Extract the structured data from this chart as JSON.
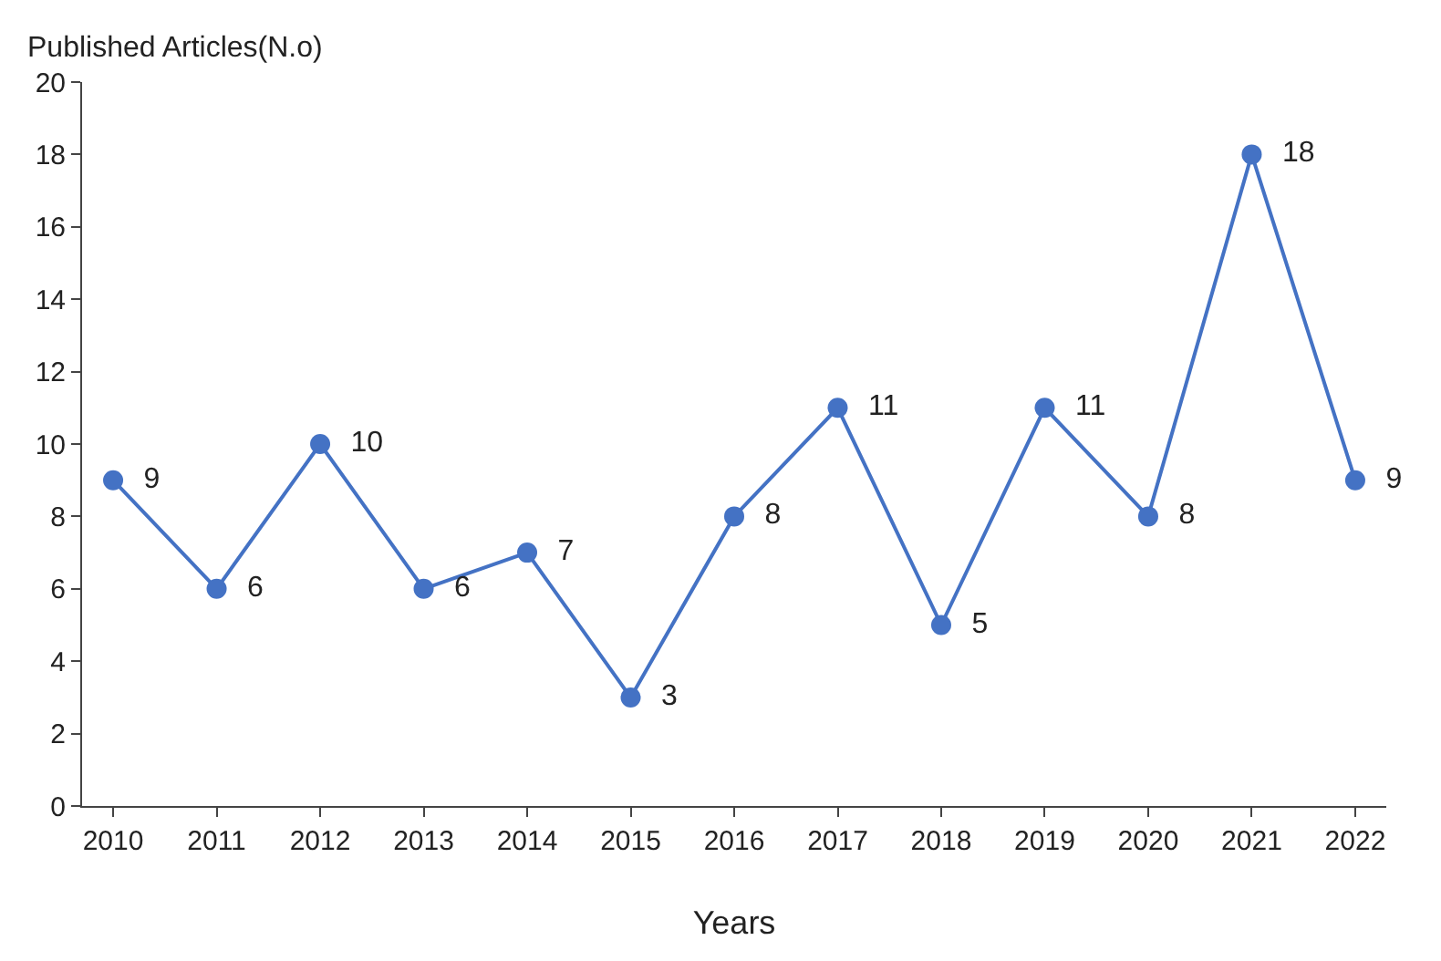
{
  "chart_data": {
    "type": "line",
    "xlabel": "Years",
    "ylabel": "Published Articles(N.o)",
    "categories": [
      "2010",
      "2011",
      "2012",
      "2013",
      "2014",
      "2015",
      "2016",
      "2017",
      "2018",
      "2019",
      "2020",
      "2021",
      "2022"
    ],
    "series": [
      {
        "color": "#4472c4",
        "values": [
          9,
          6,
          10,
          6,
          7,
          3,
          8,
          11,
          5,
          11,
          8,
          18,
          9
        ]
      }
    ],
    "ylim": [
      0,
      20
    ],
    "yticks": [
      0,
      2,
      4,
      6,
      8,
      10,
      12,
      14,
      16,
      18,
      20
    ],
    "data_labels": true,
    "marker": "circle",
    "line_style": "solid"
  }
}
